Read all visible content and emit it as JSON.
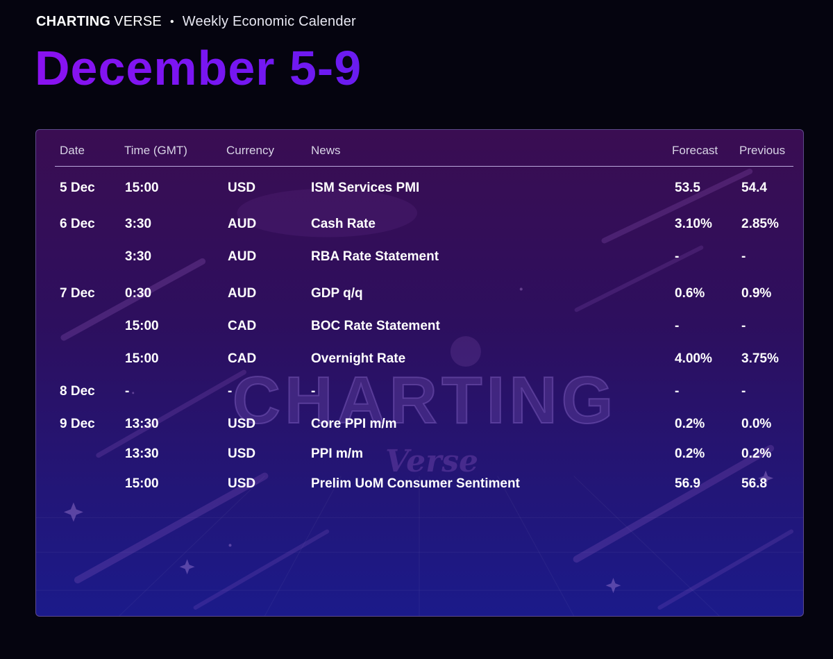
{
  "header": {
    "brand_bold": "CHARTING",
    "brand_light": "VERSE",
    "separator": "•",
    "subtitle": "Weekly Economic Calender"
  },
  "title": "December 5-9",
  "watermark": {
    "main": "CHARTING",
    "sub": "Verse"
  },
  "table": {
    "columns": [
      "Date",
      "Time (GMT)",
      "Currency",
      "News",
      "Forecast",
      "Previous"
    ],
    "rows": [
      {
        "date": "5 Dec",
        "time": "15:00",
        "currency": "USD",
        "news": "ISM Services PMI",
        "forecast": "53.5",
        "previous": "54.4"
      },
      {
        "date": "6 Dec",
        "time": "3:30",
        "currency": "AUD",
        "news": "Cash Rate",
        "forecast": "3.10%",
        "previous": "2.85%"
      },
      {
        "date": "",
        "time": "3:30",
        "currency": "AUD",
        "news": "RBA Rate Statement",
        "forecast": "-",
        "previous": "-"
      },
      {
        "date": "7 Dec",
        "time": "0:30",
        "currency": "AUD",
        "news": "GDP q/q",
        "forecast": "0.6%",
        "previous": "0.9%"
      },
      {
        "date": "",
        "time": "15:00",
        "currency": "CAD",
        "news": "BOC Rate Statement",
        "forecast": "-",
        "previous": "-"
      },
      {
        "date": "",
        "time": "15:00",
        "currency": "CAD",
        "news": "Overnight Rate",
        "forecast": "4.00%",
        "previous": "3.75%"
      },
      {
        "date": "8 Dec",
        "time": "-",
        "currency": "-",
        "news": "-",
        "forecast": "-",
        "previous": "-"
      },
      {
        "date": "9 Dec",
        "time": "13:30",
        "currency": "USD",
        "news": "Core PPI m/m",
        "forecast": "0.2%",
        "previous": "0.0%"
      },
      {
        "date": "",
        "time": "13:30",
        "currency": "USD",
        "news": "PPI m/m",
        "forecast": "0.2%",
        "previous": "0.2%"
      },
      {
        "date": "",
        "time": "15:00",
        "currency": "USD",
        "news": "Prelim UoM Consumer Sentiment",
        "forecast": "56.9",
        "previous": "56.8"
      }
    ]
  },
  "colors": {
    "title_purple": "#8414f2",
    "background": "#05040f",
    "panel_top": "#3a0d52",
    "panel_bottom": "#1b1a8a"
  }
}
